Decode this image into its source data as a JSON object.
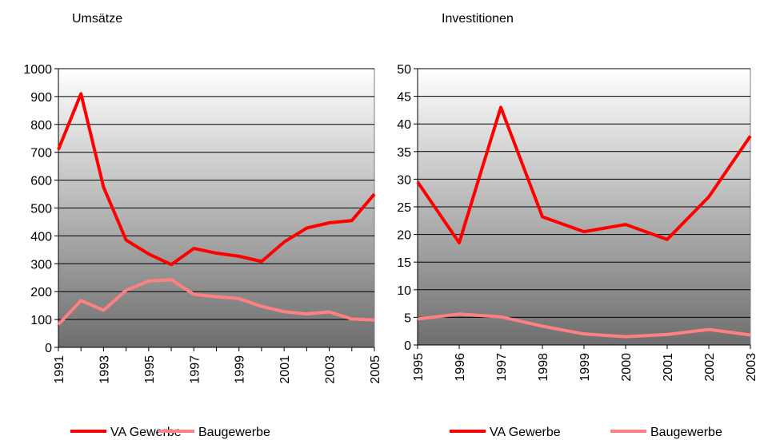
{
  "chart_data": [
    {
      "type": "line",
      "title": "Umsätze",
      "categories": [
        "1991",
        null,
        "1993",
        null,
        "1995",
        null,
        "1997",
        null,
        "1999",
        null,
        "2001",
        null,
        "2003",
        null,
        "2005"
      ],
      "series": [
        {
          "name": "VA Gewerbe",
          "color": "#ff0000",
          "values": [
            710,
            910,
            575,
            385,
            335,
            297,
            355,
            338,
            327,
            308,
            378,
            428,
            447,
            455,
            550
          ]
        },
        {
          "name": "Baugewerbe",
          "color": "#ff8080",
          "values": [
            82,
            168,
            133,
            205,
            238,
            243,
            190,
            182,
            175,
            147,
            128,
            120,
            127,
            102,
            98
          ]
        }
      ],
      "ylim": [
        0,
        1000
      ],
      "yticks": [
        0,
        100,
        200,
        300,
        400,
        500,
        600,
        700,
        800,
        900,
        1000
      ],
      "grid": true,
      "legend": "bottom"
    },
    {
      "type": "line",
      "title": "Investitionen",
      "categories": [
        "1995",
        "1996",
        "1997",
        "1998",
        "1999",
        "2000",
        "2001",
        "2002",
        "2003"
      ],
      "series": [
        {
          "name": "VA Gewerbe",
          "color": "#ff0000",
          "values": [
            29.5,
            18.5,
            43,
            23.2,
            20.5,
            21.8,
            19.1,
            26.8,
            37.8
          ]
        },
        {
          "name": "Baugewerbe",
          "color": "#ff8080",
          "values": [
            4.7,
            5.6,
            5.1,
            3.4,
            2.0,
            1.5,
            1.9,
            2.8,
            1.8
          ]
        }
      ],
      "ylim": [
        0,
        50
      ],
      "yticks": [
        0,
        5,
        10,
        15,
        20,
        25,
        30,
        35,
        40,
        45,
        50
      ],
      "grid": true,
      "legend": "bottom"
    }
  ]
}
